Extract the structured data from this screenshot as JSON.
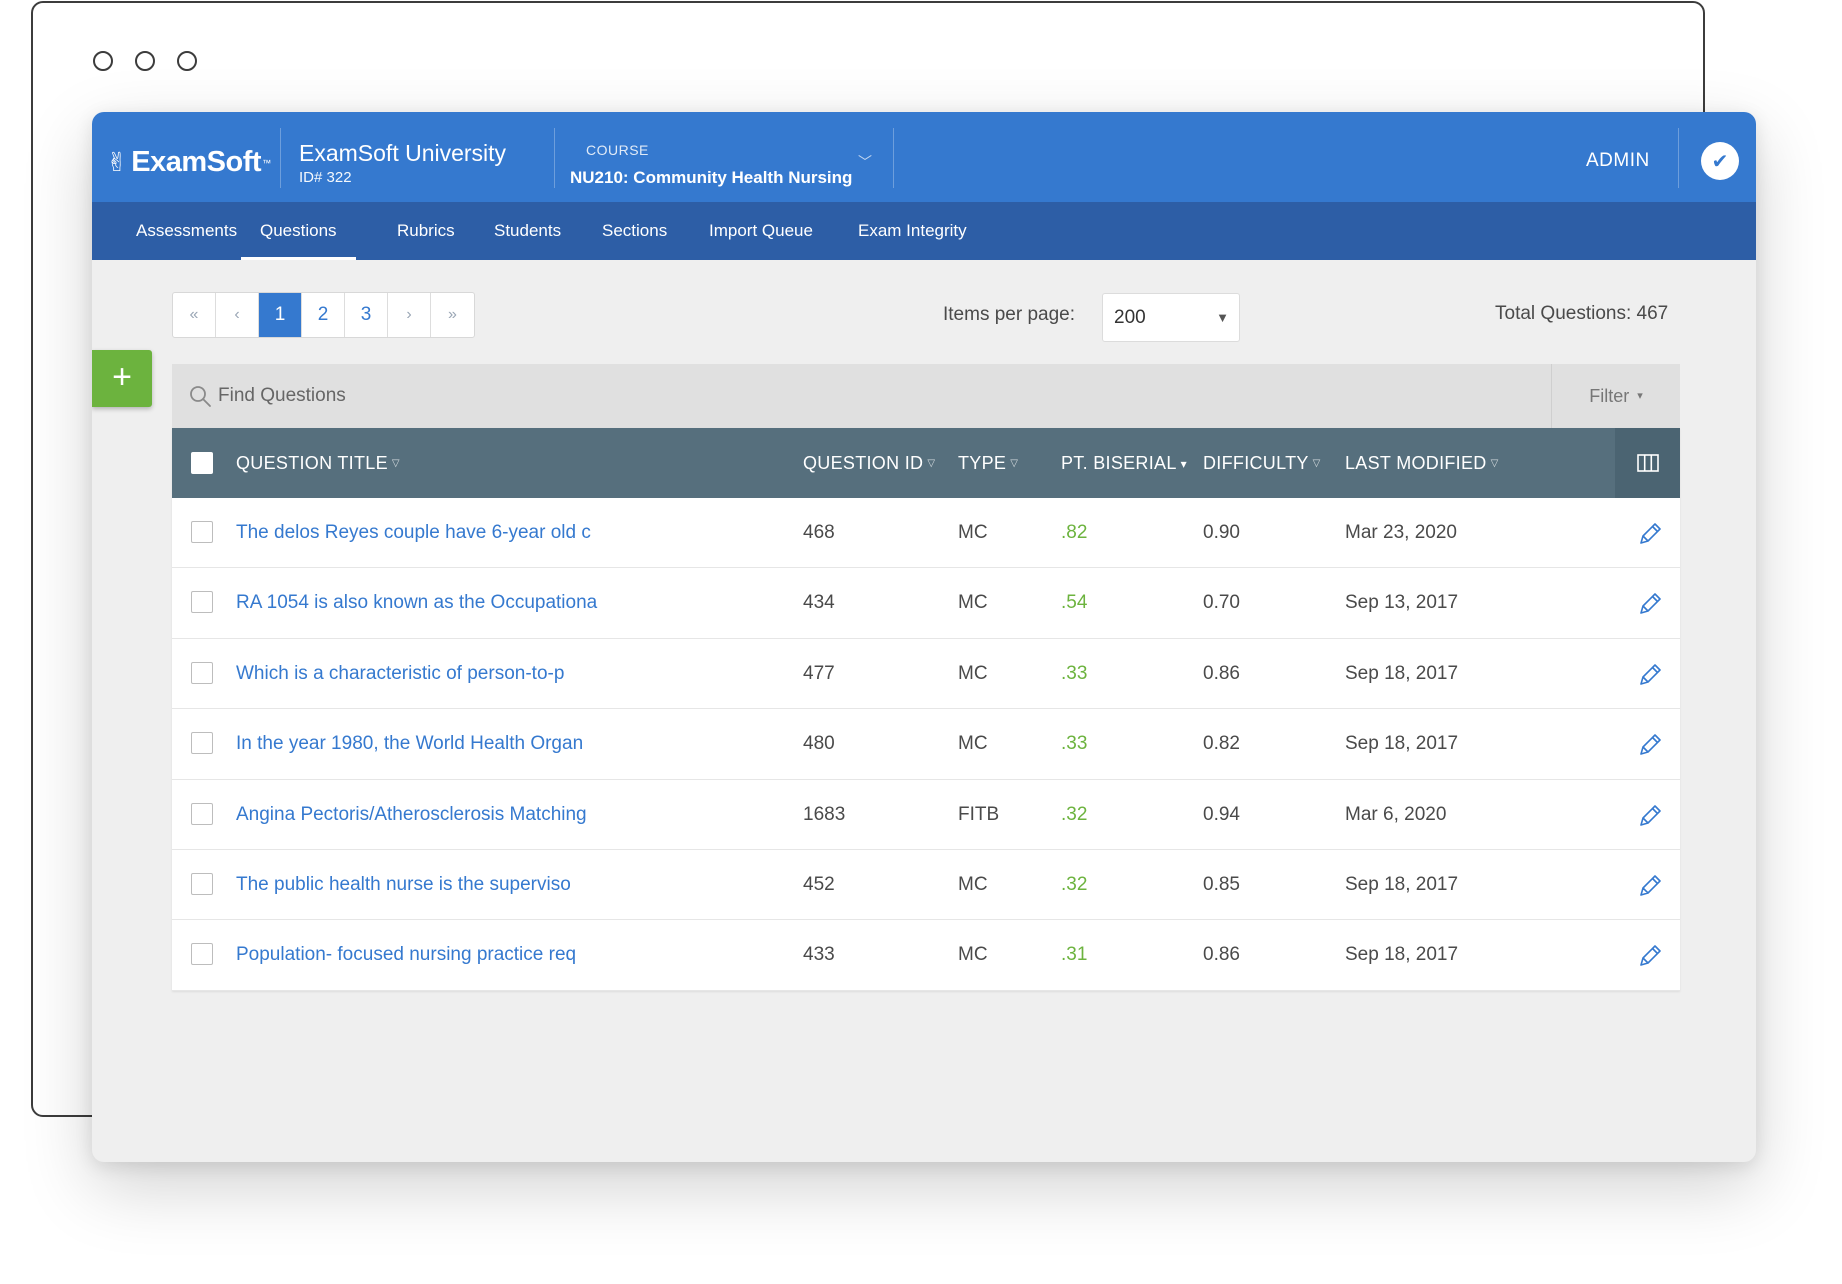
{
  "header": {
    "logo": "ExamSoft",
    "university": {
      "name": "ExamSoft University",
      "id": "ID# 322"
    },
    "course": {
      "label": "COURSE",
      "name": "NU210: Community Health Nursing"
    },
    "user": "ADMIN"
  },
  "nav": [
    "Assessments",
    "Questions",
    "Rubrics",
    "Students",
    "Sections",
    "Import Queue",
    "Exam Integrity"
  ],
  "nav_active": "Questions",
  "pager": {
    "first": "«",
    "prev": "‹",
    "pages": [
      "1",
      "2",
      "3"
    ],
    "next": "›",
    "last": "»",
    "current": "1"
  },
  "items_per_page": {
    "label": "Items per page:",
    "value": "200"
  },
  "total": "Total Questions: 467",
  "search": {
    "placeholder": "Find Questions"
  },
  "filter": {
    "label": "Filter",
    "caret": "▾"
  },
  "columns": {
    "title": "QUESTION TITLE",
    "id": "QUESTION ID",
    "type": "TYPE",
    "pbs": "PT. BISERIAL",
    "difficulty": "DIFFICULTY",
    "modified": "LAST MODIFIED"
  },
  "sort_glyphs": {
    "default": "▽",
    "active": "▾"
  },
  "rows": [
    {
      "title": "The delos Reyes couple have 6-year old c",
      "id": "468",
      "type": "MC",
      "pbs": ".82",
      "difficulty": "0.90",
      "modified": "Mar 23, 2020"
    },
    {
      "title": "RA 1054 is also known as the Occupationa",
      "id": "434",
      "type": "MC",
      "pbs": ".54",
      "difficulty": "0.70",
      "modified": "Sep 13, 2017"
    },
    {
      "title": "Which is a characteristic of person-to-p",
      "id": "477",
      "type": "MC",
      "pbs": ".33",
      "difficulty": "0.86",
      "modified": "Sep 18, 2017"
    },
    {
      "title": "In the year 1980, the World Health Organ",
      "id": "480",
      "type": "MC",
      "pbs": ".33",
      "difficulty": "0.82",
      "modified": "Sep 18, 2017"
    },
    {
      "title": "Angina Pectoris/Atherosclerosis Matching",
      "id": "1683",
      "type": "FITB",
      "pbs": ".32",
      "difficulty": "0.94",
      "modified": "Mar 6, 2020"
    },
    {
      "title": "The public health nurse is the superviso",
      "id": "452",
      "type": "MC",
      "pbs": ".32",
      "difficulty": "0.85",
      "modified": "Sep 18, 2017"
    },
    {
      "title": "Population- focused nursing practice req",
      "id": "433",
      "type": "MC",
      "pbs": ".31",
      "difficulty": "0.86",
      "modified": "Sep 18, 2017"
    }
  ],
  "icons": {
    "add": "plus-icon",
    "search": "search-icon",
    "edit": "pencil-icon",
    "columns": "columns-icon",
    "avatar": "check-badge-icon"
  },
  "colors": {
    "topbar": "#3579cf",
    "navbar": "#2d5ea6",
    "table_header": "#566f7d",
    "link": "#3579cf",
    "positive": "#6cb33e",
    "add_button": "#6cb33e"
  }
}
